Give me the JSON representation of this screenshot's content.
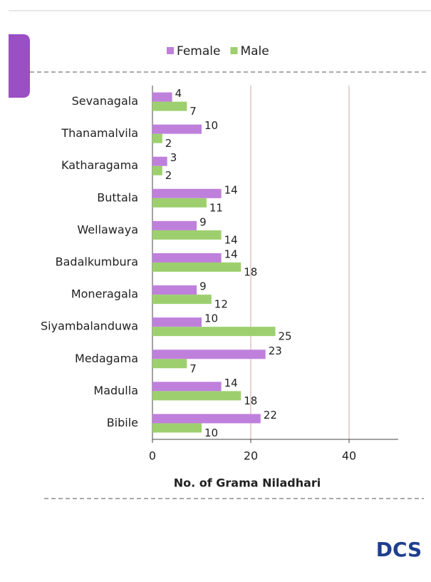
{
  "chart_data": {
    "type": "bar",
    "orientation": "horizontal",
    "categories": [
      "Sevanagala",
      "Thanamalvila",
      "Katharagama",
      "Buttala",
      "Wellawaya",
      "Badalkumbura",
      "Moneragala",
      "Siyambalanduwa",
      "Medagama",
      "Madulla",
      "Bibile"
    ],
    "series": [
      {
        "name": "Female",
        "color": "#bf80dc",
        "values": [
          4,
          10,
          3,
          14,
          9,
          14,
          9,
          10,
          23,
          14,
          22
        ]
      },
      {
        "name": "Male",
        "color": "#9dcf6f",
        "values": [
          7,
          2,
          2,
          11,
          14,
          18,
          12,
          25,
          7,
          18,
          10
        ]
      }
    ],
    "x_label": "No. of Grama Niladhari",
    "xlim": [
      0,
      50
    ],
    "xticks": [
      0,
      20,
      40
    ],
    "grid": true,
    "legend": "top",
    "logo": "DCS"
  }
}
